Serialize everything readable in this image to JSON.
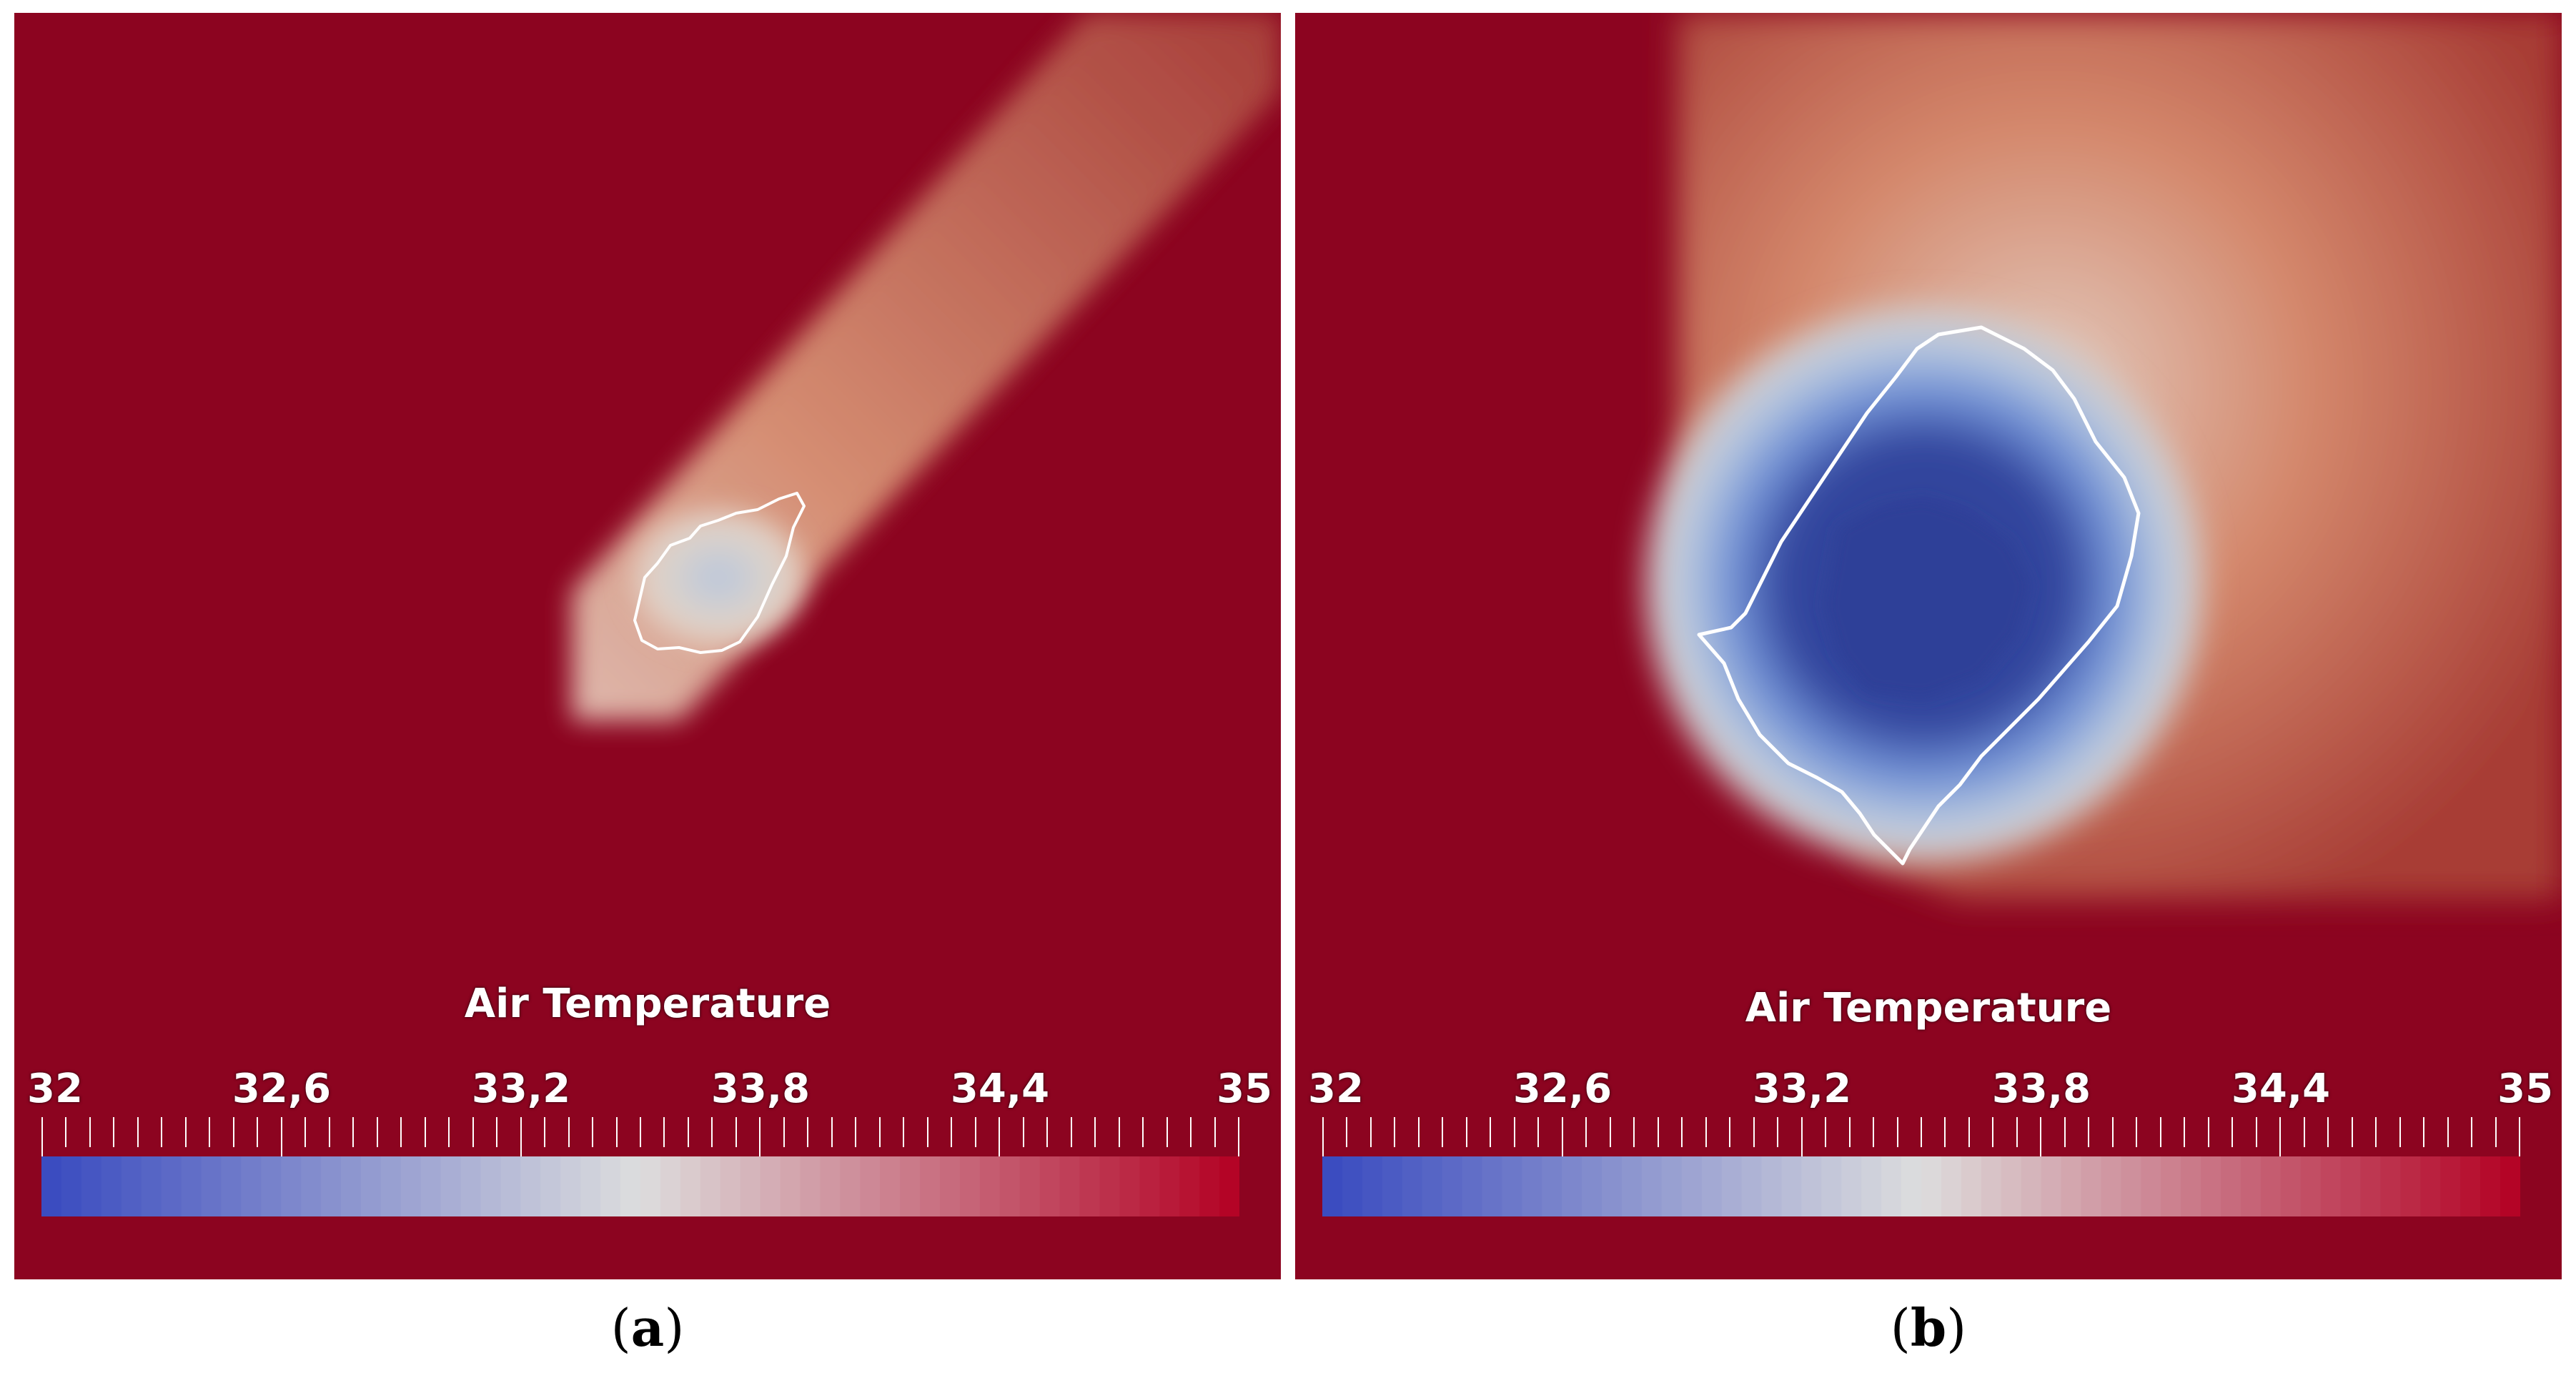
{
  "chart_data": [
    {
      "type": "heatmap",
      "panel_caption": "a",
      "colorbar": {
        "title": "Air Temperature",
        "tick_labels": [
          "32",
          "32,6",
          "33,2",
          "33,8",
          "34,4",
          "35"
        ],
        "range": [
          32,
          35
        ],
        "colormap": "cool-to-warm"
      },
      "background_value": 35,
      "region_min_value": 33.5,
      "contour_color": "#ffffff"
    },
    {
      "type": "heatmap",
      "panel_caption": "b",
      "colorbar": {
        "title": "Air Temperature",
        "tick_labels": [
          "32",
          "32,6",
          "33,2",
          "33,8",
          "34,4",
          "35"
        ],
        "range": [
          32,
          35
        ],
        "colormap": "cool-to-warm"
      },
      "background_value": 35,
      "region_min_value": 32,
      "contour_color": "#ffffff"
    }
  ],
  "colors": {
    "background": "#8c0420",
    "cold": "#3b4cc0",
    "neutral": "#dddddd",
    "warm": "#b40426"
  }
}
